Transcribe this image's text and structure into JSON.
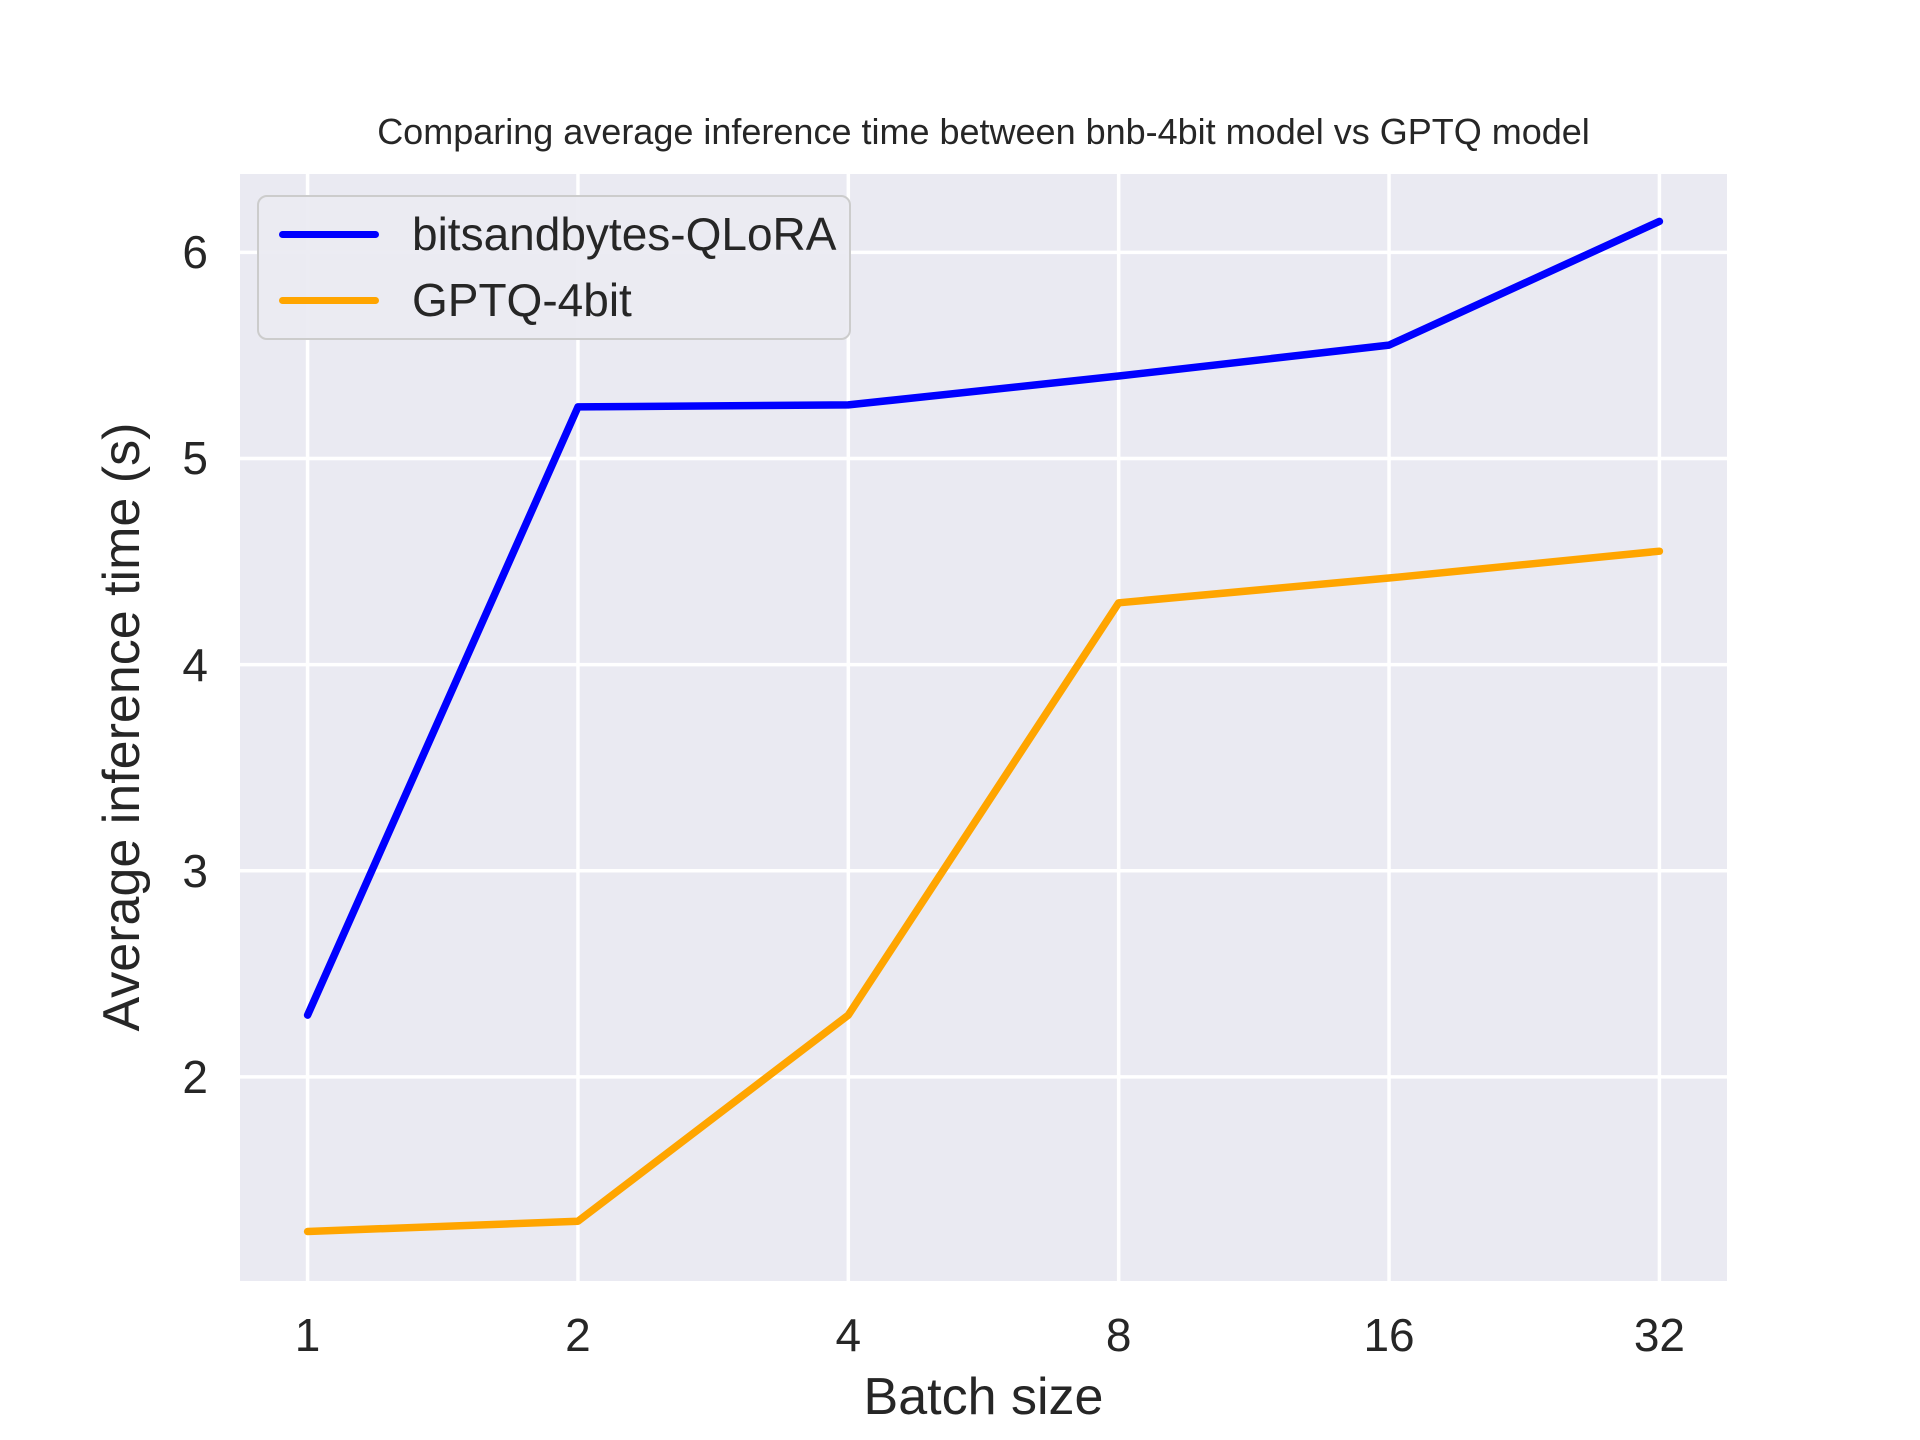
{
  "figure": {
    "background": "#ffffff",
    "text_color": "#262626"
  },
  "chart_data": {
    "type": "line",
    "title": "Comparing average inference time between bnb-4bit model vs GPTQ model",
    "xlabel": "Batch size",
    "ylabel": "Average inference time (s)",
    "x": [
      1,
      2,
      4,
      8,
      16,
      32
    ],
    "x_scale": "log2",
    "x_tick_labels": [
      "1",
      "2",
      "4",
      "8",
      "16",
      "32"
    ],
    "y_ticks": [
      2,
      3,
      4,
      5,
      6
    ],
    "xlim_log2": [
      -0.25,
      5.25
    ],
    "ylim": [
      1.01,
      6.38
    ],
    "grid": true,
    "grid_color": "#ffffff",
    "plot_bg": "#eaeaf2",
    "legend_position": "upper-left",
    "series": [
      {
        "name": "bitsandbytes-QLoRA",
        "color": "#0000ff",
        "values": [
          2.3,
          5.25,
          5.26,
          5.4,
          5.55,
          6.15
        ]
      },
      {
        "name": "GPTQ-4bit",
        "color": "#ffa500",
        "values": [
          1.25,
          1.3,
          2.3,
          4.3,
          4.42,
          4.55
        ]
      }
    ]
  }
}
